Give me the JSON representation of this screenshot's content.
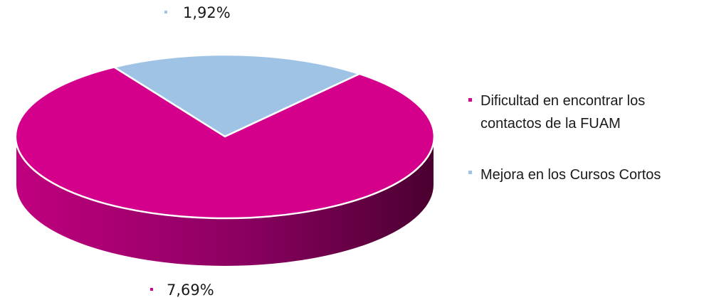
{
  "chart_data": {
    "type": "pie",
    "style": "3d",
    "legend_position": "right",
    "slices": [
      {
        "label": "Dificultad en encontrar los contactos de la FUAM",
        "value": 7.69,
        "value_label": "7,69%",
        "color": "#d4008c"
      },
      {
        "label": "Mejora en los Cursos Cortos",
        "value": 1.92,
        "value_label": "1,92%",
        "color": "#9fc3e4"
      }
    ]
  },
  "legend": {
    "items": [
      {
        "lines": [
          "Dificultad en encontrar los",
          "contactos de la FUAM"
        ],
        "color": "#d4008c"
      },
      {
        "lines": [
          "Mejora en los Cursos Cortos"
        ],
        "color": "#9fc3e4"
      }
    ]
  }
}
